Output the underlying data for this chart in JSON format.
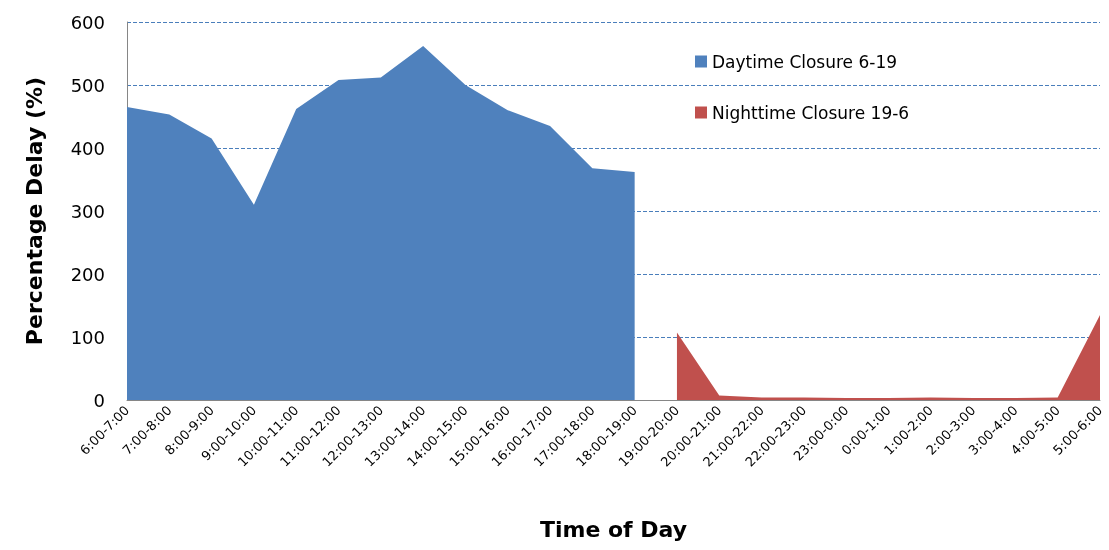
{
  "chart_data": {
    "type": "area",
    "xlabel": "Time of Day",
    "ylabel": "Percentage Delay (%)",
    "categories": [
      "6:00-7:00",
      "7:00-8:00",
      "8:00-9:00",
      "9:00-10:00",
      "10:00-11:00",
      "11:00-12:00",
      "12:00-13:00",
      "13:00-14:00",
      "14:00-15:00",
      "15:00-16:00",
      "16:00-17:00",
      "17:00-18:00",
      "18:00-19:00",
      "19:00-20:00",
      "20:00-21:00",
      "21:00-22:00",
      "22:00-23:00",
      "23:00-0:00",
      "0:00-1:00",
      "1:00-2:00",
      "2:00-3:00",
      "3:00-4:00",
      "4:00-5:00",
      "5:00-6:00"
    ],
    "series": [
      {
        "name": "Daytime Closure 6-19",
        "color": "#4f81bd",
        "values": [
          465,
          453,
          415,
          310,
          462,
          508,
          512,
          562,
          500,
          460,
          435,
          368,
          362,
          null,
          null,
          null,
          null,
          null,
          null,
          null,
          null,
          null,
          null,
          null
        ]
      },
      {
        "name": "Nighttime Closure 19-6",
        "color": "#c0504d",
        "values": [
          null,
          null,
          null,
          null,
          null,
          null,
          null,
          null,
          null,
          null,
          null,
          null,
          null,
          107,
          7,
          4,
          4,
          3,
          3,
          4,
          3,
          3,
          4,
          135
        ]
      }
    ],
    "ylim": [
      0,
      600
    ],
    "yticks": [
      0,
      100,
      200,
      300,
      400,
      500,
      600
    ],
    "grid": "y",
    "legend": "top right",
    "marker": "none"
  }
}
